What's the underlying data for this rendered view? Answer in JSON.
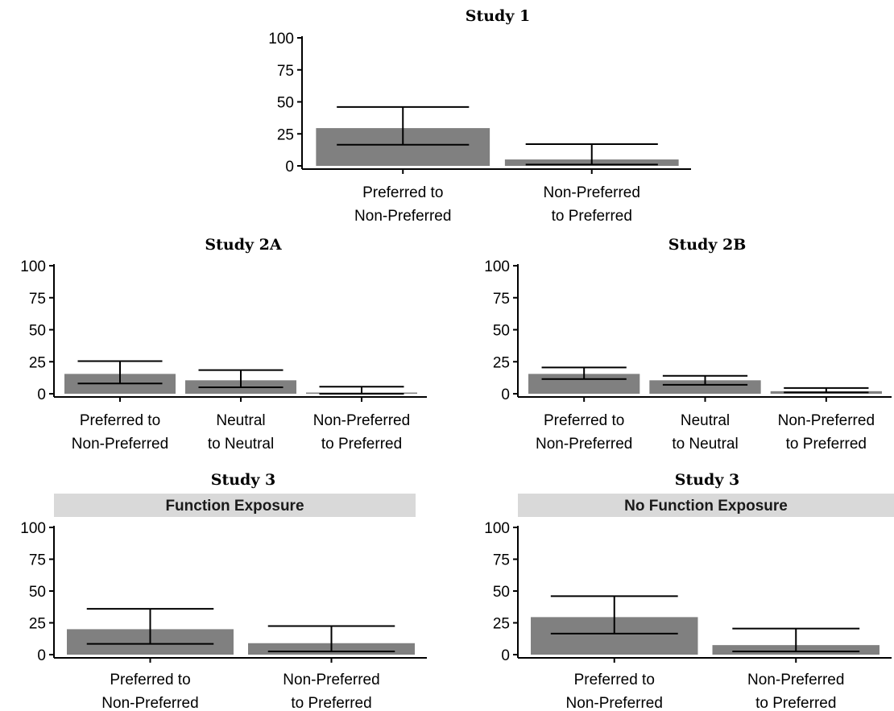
{
  "colors": {
    "bar": "#808080",
    "error_bar": "#000000",
    "axis": "#000000",
    "strip": "#d9d9d9"
  },
  "chart_data": [
    {
      "id": "study1",
      "type": "bar",
      "title": "Study 1",
      "strip": "",
      "categories": [
        "Preferred to\nNon-Preferred",
        "Non-Preferred\nto Preferred"
      ],
      "values": [
        29.5,
        5
      ],
      "error_low": [
        16.5,
        1
      ],
      "error_high": [
        46,
        17
      ],
      "ylim": [
        0,
        100
      ],
      "yticks": [
        0,
        25,
        50,
        75,
        100
      ],
      "xlabel": "",
      "ylabel": "",
      "grid": false
    },
    {
      "id": "study2a",
      "type": "bar",
      "title": "Study 2A",
      "strip": "",
      "categories": [
        "Preferred to\nNon-Preferred",
        "Neutral\nto Neutral",
        "Non-Preferred\nto Preferred"
      ],
      "values": [
        15.5,
        10.5,
        0.5
      ],
      "error_low": [
        8,
        5,
        0
      ],
      "error_high": [
        25.5,
        18.5,
        5.5
      ],
      "ylim": [
        0,
        100
      ],
      "yticks": [
        0,
        25,
        50,
        75,
        100
      ],
      "xlabel": "",
      "ylabel": "",
      "grid": false
    },
    {
      "id": "study2b",
      "type": "bar",
      "title": "Study 2B",
      "strip": "",
      "categories": [
        "Preferred to\nNon-Preferred",
        "Neutral\nto Neutral",
        "Non-Preferred\nto Preferred"
      ],
      "values": [
        15.5,
        10.5,
        2
      ],
      "error_low": [
        11.5,
        7,
        1
      ],
      "error_high": [
        20.5,
        14,
        4.5
      ],
      "ylim": [
        0,
        100
      ],
      "yticks": [
        0,
        25,
        50,
        75,
        100
      ],
      "xlabel": "",
      "ylabel": "",
      "grid": false
    },
    {
      "id": "study3_function",
      "type": "bar",
      "title": "Study 3",
      "strip": "Function Exposure",
      "categories": [
        "Preferred to\nNon-Preferred",
        "Non-Preferred\nto Preferred"
      ],
      "values": [
        20,
        9
      ],
      "error_low": [
        8.5,
        2.5
      ],
      "error_high": [
        36,
        22.5
      ],
      "ylim": [
        0,
        100
      ],
      "yticks": [
        0,
        25,
        50,
        75,
        100
      ],
      "xlabel": "",
      "ylabel": "",
      "grid": false
    },
    {
      "id": "study3_nofunction",
      "type": "bar",
      "title": "Study 3",
      "strip": "No Function Exposure",
      "categories": [
        "Preferred to\nNon-Preferred",
        "Non-Preferred\nto Preferred"
      ],
      "values": [
        29.5,
        7.5
      ],
      "error_low": [
        16.5,
        2.5
      ],
      "error_high": [
        46,
        20.5
      ],
      "ylim": [
        0,
        100
      ],
      "yticks": [
        0,
        25,
        50,
        75,
        100
      ],
      "xlabel": "",
      "ylabel": "",
      "grid": false
    }
  ]
}
